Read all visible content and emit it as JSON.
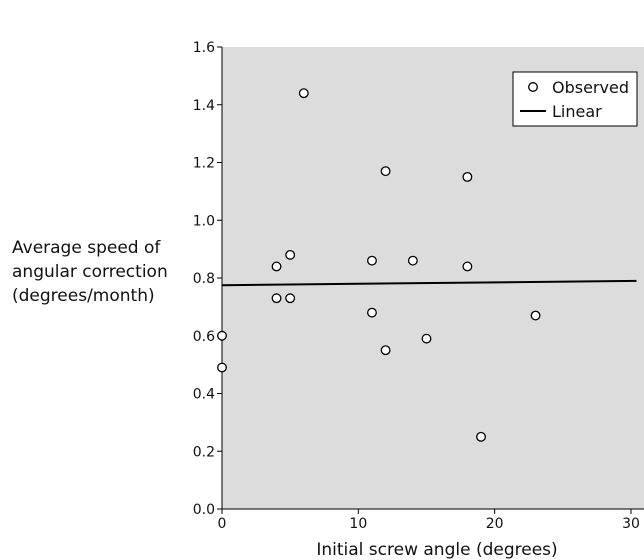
{
  "chart_data": {
    "type": "scatter",
    "xlabel": "Initial screw angle (degrees)",
    "ylabel_lines": [
      "Average speed of",
      "angular correction",
      "(degrees/month)"
    ],
    "xlim": [
      0,
      30
    ],
    "ylim": [
      0.0,
      1.6
    ],
    "x_ticks": [
      0,
      10,
      20,
      30
    ],
    "y_ticks": [
      0.0,
      0.2,
      0.4,
      0.6,
      0.8,
      1.0,
      1.2,
      1.4,
      1.6
    ],
    "x_tick_labels": [
      "0",
      "10",
      "20",
      "30"
    ],
    "y_tick_labels": [
      "0.0",
      "0.2",
      "0.4",
      "0.6",
      "0.8",
      "1.0",
      "1.2",
      "1.4",
      "1.6"
    ],
    "grid": false,
    "legend_position": "top-right",
    "colors": {
      "plot_background": "#dcdcdc",
      "marker_fill": "#ffffff",
      "marker_stroke": "#000000",
      "line": "#000000"
    },
    "series": [
      {
        "name": "Observed",
        "kind": "markers",
        "marker": "open-circle",
        "points": [
          {
            "x": 0,
            "y": 0.6
          },
          {
            "x": 0,
            "y": 0.49
          },
          {
            "x": 4,
            "y": 0.84
          },
          {
            "x": 4,
            "y": 0.73
          },
          {
            "x": 5,
            "y": 0.88
          },
          {
            "x": 5,
            "y": 0.73
          },
          {
            "x": 6,
            "y": 1.44
          },
          {
            "x": 11,
            "y": 0.86
          },
          {
            "x": 11,
            "y": 0.68
          },
          {
            "x": 12,
            "y": 1.17
          },
          {
            "x": 12,
            "y": 0.55
          },
          {
            "x": 14,
            "y": 0.86
          },
          {
            "x": 15,
            "y": 0.59
          },
          {
            "x": 18,
            "y": 1.15
          },
          {
            "x": 18,
            "y": 0.84
          },
          {
            "x": 19,
            "y": 0.25
          },
          {
            "x": 23,
            "y": 0.67
          }
        ]
      },
      {
        "name": "Linear",
        "kind": "line",
        "points": [
          {
            "x": 0,
            "y": 0.775
          },
          {
            "x": 30.4,
            "y": 0.79
          }
        ]
      }
    ]
  }
}
